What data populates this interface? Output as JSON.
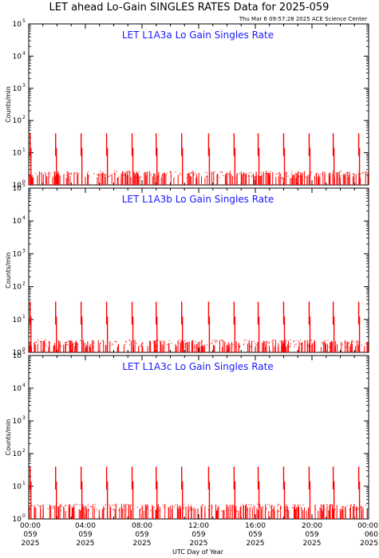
{
  "title": "LET ahead Lo-Gain SINGLES RATES Data for 2025-059",
  "timestamp": "Thu Mar  6 09:57:28 2025 ACE Science Center",
  "xlabel": "UTC Day of Year",
  "colors": {
    "series": "#ff0000",
    "panel_title": "#1a1aff",
    "axes": "#000000"
  },
  "chart_data": [
    {
      "type": "line",
      "title": "LET L1A3a Lo Gain Singles Rate",
      "ylabel": "Counts/min",
      "yscale": "log",
      "ylim": [
        1,
        100000
      ],
      "xlim": [
        0,
        24
      ],
      "y_ticks": [
        {
          "base": "10",
          "exp": "0"
        },
        {
          "base": "10",
          "exp": "1"
        },
        {
          "base": "10",
          "exp": "2"
        },
        {
          "base": "10",
          "exp": "3"
        },
        {
          "base": "10",
          "exp": "4"
        },
        {
          "base": "10",
          "exp": "5"
        }
      ],
      "spike_hours": [
        0.1,
        1.9,
        3.7,
        5.5,
        7.3,
        9.0,
        10.8,
        12.7,
        14.5,
        16.2,
        18.0,
        19.8,
        21.5,
        23.3
      ],
      "spike_peak": 40,
      "background_level": 1.8
    },
    {
      "type": "line",
      "title": "LET L1A3b Lo Gain Singles Rate",
      "ylabel": "Counts/min",
      "yscale": "log",
      "ylim": [
        1,
        100000
      ],
      "xlim": [
        0,
        24
      ],
      "y_ticks": [
        {
          "base": "10",
          "exp": "0"
        },
        {
          "base": "10",
          "exp": "1"
        },
        {
          "base": "10",
          "exp": "2"
        },
        {
          "base": "10",
          "exp": "3"
        },
        {
          "base": "10",
          "exp": "4"
        },
        {
          "base": "10",
          "exp": "5"
        }
      ],
      "spike_hours": [
        0.1,
        1.9,
        3.7,
        5.5,
        7.3,
        9.0,
        10.8,
        12.7,
        14.5,
        16.2,
        18.0,
        19.8,
        21.5,
        23.3
      ],
      "spike_peak": 35,
      "background_level": 1.6
    },
    {
      "type": "line",
      "title": "LET L1A3c Lo Gain Singles Rate",
      "ylabel": "Counts/min",
      "yscale": "log",
      "ylim": [
        1,
        100000
      ],
      "xlim": [
        0,
        24
      ],
      "y_ticks": [
        {
          "base": "10",
          "exp": "0"
        },
        {
          "base": "10",
          "exp": "1"
        },
        {
          "base": "10",
          "exp": "2"
        },
        {
          "base": "10",
          "exp": "3"
        },
        {
          "base": "10",
          "exp": "4"
        },
        {
          "base": "10",
          "exp": "5"
        }
      ],
      "spike_hours": [
        0.1,
        1.9,
        3.7,
        5.5,
        7.3,
        9.0,
        10.8,
        12.7,
        14.5,
        16.2,
        18.0,
        19.8,
        21.5,
        23.3
      ],
      "spike_peak": 40,
      "background_level": 1.9
    }
  ],
  "x_ticks": [
    {
      "hour": 0,
      "time": "00:00",
      "doy": "059",
      "year": "2025"
    },
    {
      "hour": 4,
      "time": "04:00",
      "doy": "059",
      "year": "2025"
    },
    {
      "hour": 8,
      "time": "08:00",
      "doy": "059",
      "year": "2025"
    },
    {
      "hour": 12,
      "time": "12:00",
      "doy": "059",
      "year": "2025"
    },
    {
      "hour": 16,
      "time": "16:00",
      "doy": "059",
      "year": "2025"
    },
    {
      "hour": 20,
      "time": "20:00",
      "doy": "059",
      "year": "2025"
    },
    {
      "hour": 24,
      "time": "00:00",
      "doy": "060",
      "year": "2025"
    }
  ]
}
